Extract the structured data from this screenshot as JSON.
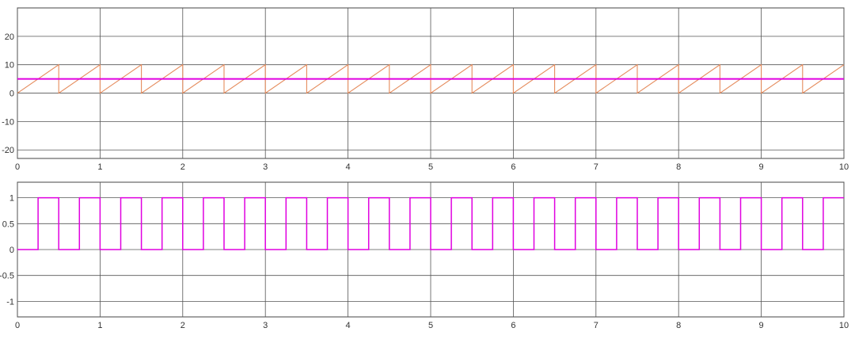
{
  "chart_data": [
    {
      "type": "line",
      "title": "",
      "xlabel": "",
      "ylabel": "",
      "xlim": [
        0,
        10
      ],
      "ylim": [
        -23,
        30
      ],
      "grid": true,
      "x_ticks": [
        0,
        1,
        2,
        3,
        4,
        5,
        6,
        7,
        8,
        9,
        10
      ],
      "y_ticks": [
        -20,
        -10,
        0,
        10,
        20
      ],
      "series": [
        {
          "kind": "sawtooth",
          "color": "#e58b5c",
          "period": 0.5,
          "min": 0,
          "max": 10,
          "x_start": 0,
          "x_end": 10
        },
        {
          "kind": "constant",
          "color": "#e000e0",
          "value": 5,
          "x_start": 0,
          "x_end": 10
        }
      ]
    },
    {
      "type": "line",
      "title": "",
      "xlabel": "",
      "ylabel": "",
      "xlim": [
        0,
        10
      ],
      "ylim": [
        -1.3,
        1.3
      ],
      "grid": true,
      "x_ticks": [
        0,
        1,
        2,
        3,
        4,
        5,
        6,
        7,
        8,
        9,
        10
      ],
      "y_ticks": [
        -1,
        -0.5,
        0,
        0.5,
        1
      ],
      "series": [
        {
          "kind": "square",
          "color": "#e000e0",
          "period": 0.5,
          "low": 0,
          "high": 1,
          "phase_high": 0.25,
          "x_start": 0,
          "x_end": 10
        }
      ]
    }
  ]
}
